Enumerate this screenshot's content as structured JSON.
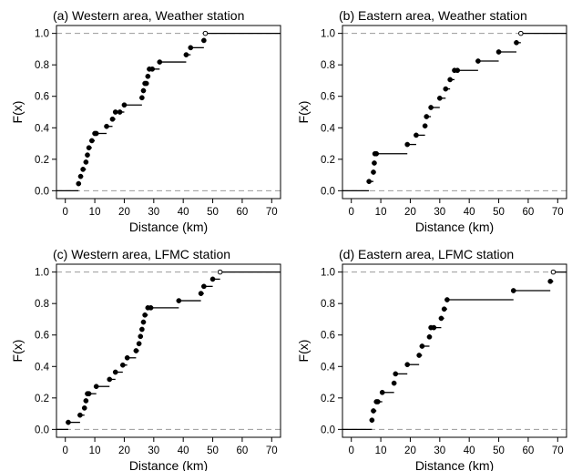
{
  "chart_data": [
    {
      "type": "ecdf",
      "title": "(a) Western area, Weather station",
      "xlabel": "Distance (km)",
      "ylabel": "F(x)",
      "xlim": [
        -3,
        73
      ],
      "ylim": [
        -0.05,
        1.05
      ],
      "xticks": [
        0,
        10,
        20,
        30,
        40,
        50,
        60,
        70
      ],
      "yticks": [
        0.0,
        0.2,
        0.4,
        0.6,
        0.8,
        1.0
      ],
      "ytick_labels": [
        "0.0",
        "0.2",
        "0.4",
        "0.6",
        "0.8",
        "1.0"
      ],
      "reference_lines": [
        0,
        1
      ],
      "grid": false,
      "x": [
        4.5,
        5.2,
        6.0,
        7.0,
        7.5,
        8.0,
        9.0,
        10.0,
        10.5,
        14.0,
        16.0,
        17.0,
        18.5,
        20.0,
        26.0,
        26.5,
        27.0,
        27.5,
        28.0,
        28.5,
        29.5,
        32.0,
        41.0,
        42.5,
        47.0,
        47.5
      ],
      "F": [
        0.045,
        0.091,
        0.136,
        0.182,
        0.227,
        0.273,
        0.318,
        0.364,
        0.364,
        0.409,
        0.455,
        0.5,
        0.5,
        0.545,
        0.591,
        0.636,
        0.682,
        0.682,
        0.727,
        0.773,
        0.773,
        0.818,
        0.864,
        0.909,
        0.955,
        1.0
      ]
    },
    {
      "type": "ecdf",
      "title": "(b) Eastern area, Weather station",
      "xlabel": "Distance (km)",
      "ylabel": "F(x)",
      "xlim": [
        -3,
        73
      ],
      "ylim": [
        -0.05,
        1.05
      ],
      "xticks": [
        0,
        10,
        20,
        30,
        40,
        50,
        60,
        70
      ],
      "yticks": [
        0.0,
        0.2,
        0.4,
        0.6,
        0.8,
        1.0
      ],
      "ytick_labels": [
        "0.0",
        "0.2",
        "0.4",
        "0.6",
        "0.8",
        "1.0"
      ],
      "reference_lines": [
        0,
        1
      ],
      "grid": false,
      "x": [
        6.0,
        7.5,
        7.8,
        8.0,
        8.5,
        19.0,
        22.0,
        25.0,
        25.5,
        27.0,
        30.0,
        32.0,
        33.5,
        35.0,
        36.0,
        43.0,
        50.0,
        56.0,
        57.5
      ],
      "F": [
        0.059,
        0.118,
        0.176,
        0.235,
        0.235,
        0.294,
        0.353,
        0.412,
        0.471,
        0.529,
        0.588,
        0.647,
        0.706,
        0.765,
        0.765,
        0.824,
        0.882,
        0.941,
        1.0
      ]
    },
    {
      "type": "ecdf",
      "title": "(c) Western area, LFMC station",
      "xlabel": "Distance (km)",
      "ylabel": "F(x)",
      "xlim": [
        -3,
        73
      ],
      "ylim": [
        -0.05,
        1.05
      ],
      "xticks": [
        0,
        10,
        20,
        30,
        40,
        50,
        60,
        70
      ],
      "yticks": [
        0.0,
        0.2,
        0.4,
        0.6,
        0.8,
        1.0
      ],
      "ytick_labels": [
        "0.0",
        "0.2",
        "0.4",
        "0.6",
        "0.8",
        "1.0"
      ],
      "reference_lines": [
        0,
        1
      ],
      "grid": false,
      "x": [
        1.0,
        5.0,
        6.5,
        7.0,
        7.5,
        8.0,
        10.5,
        15.0,
        17.0,
        19.5,
        21.0,
        24.0,
        25.0,
        25.5,
        26.0,
        26.5,
        27.0,
        28.0,
        29.0,
        38.5,
        46.0,
        47.0,
        50.0,
        52.5
      ],
      "F": [
        0.045,
        0.091,
        0.136,
        0.182,
        0.227,
        0.227,
        0.273,
        0.318,
        0.364,
        0.409,
        0.455,
        0.5,
        0.545,
        0.591,
        0.636,
        0.682,
        0.727,
        0.773,
        0.773,
        0.818,
        0.864,
        0.909,
        0.955,
        1.0
      ]
    },
    {
      "type": "ecdf",
      "title": "(d) Eastern area, LFMC station",
      "xlabel": "Distance (km)",
      "ylabel": "F(x)",
      "xlim": [
        -3,
        73
      ],
      "ylim": [
        -0.05,
        1.05
      ],
      "xticks": [
        0,
        10,
        20,
        30,
        40,
        50,
        60,
        70
      ],
      "yticks": [
        0.0,
        0.2,
        0.4,
        0.6,
        0.8,
        1.0
      ],
      "ytick_labels": [
        "0.0",
        "0.2",
        "0.4",
        "0.6",
        "0.8",
        "1.0"
      ],
      "reference_lines": [
        0,
        1
      ],
      "grid": false,
      "x": [
        7.0,
        7.5,
        8.5,
        9.0,
        10.5,
        14.5,
        15.0,
        19.0,
        23.0,
        24.0,
        26.5,
        27.0,
        28.0,
        30.5,
        31.5,
        32.5,
        55.0,
        67.5,
        68.5
      ],
      "F": [
        0.059,
        0.118,
        0.176,
        0.176,
        0.235,
        0.294,
        0.353,
        0.412,
        0.471,
        0.529,
        0.588,
        0.647,
        0.647,
        0.706,
        0.765,
        0.824,
        0.882,
        0.941,
        1.0
      ]
    }
  ]
}
